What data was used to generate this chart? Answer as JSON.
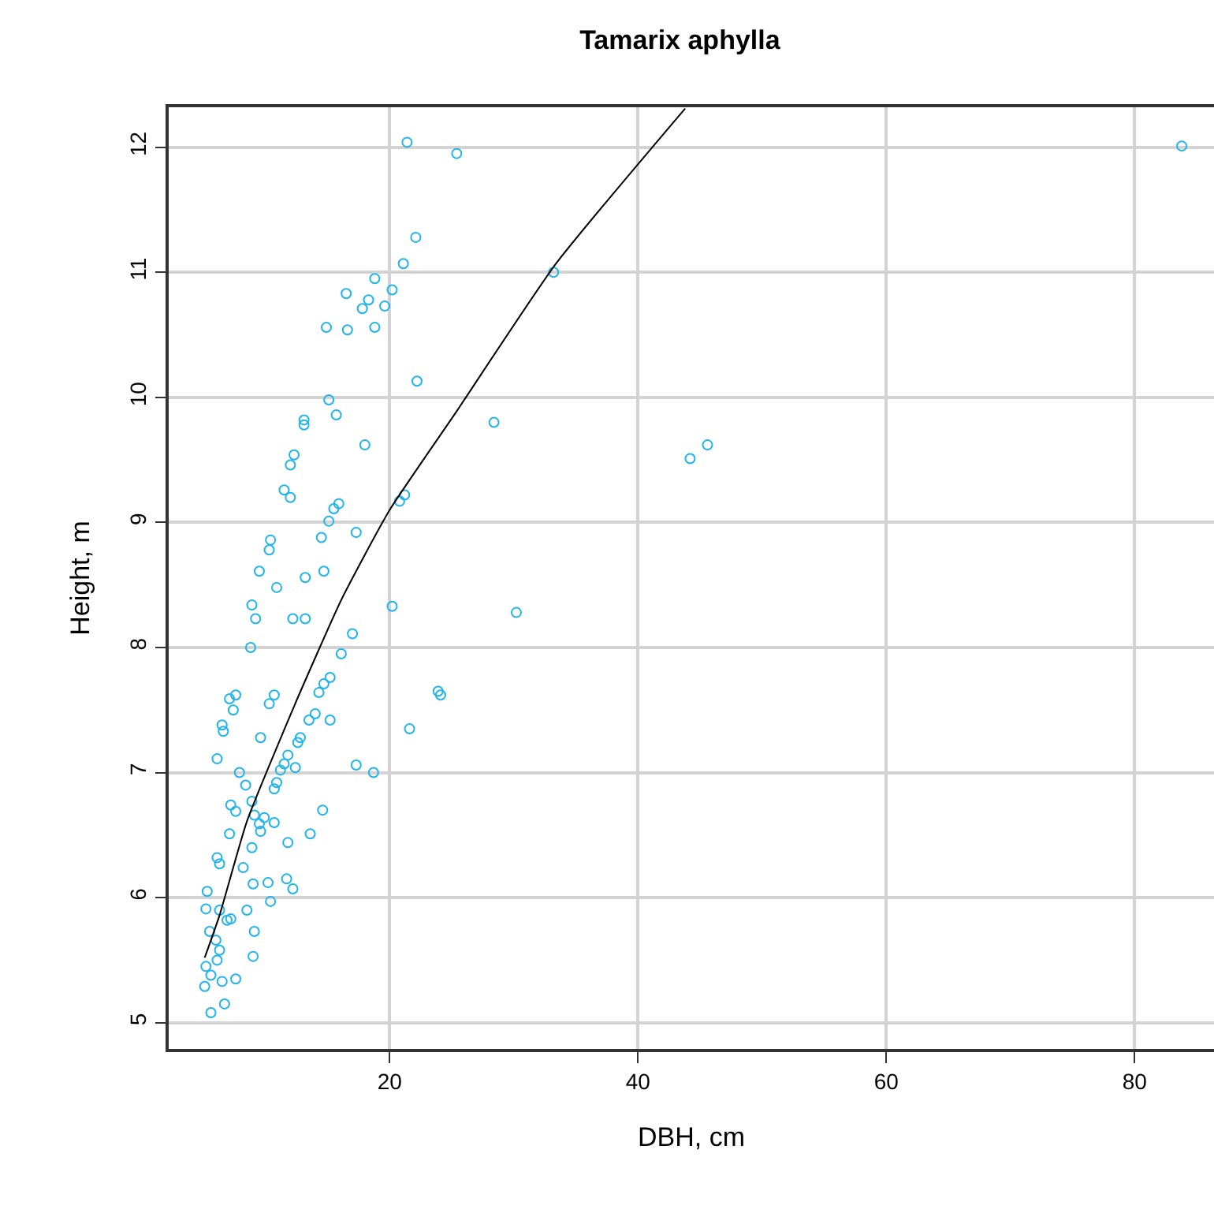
{
  "chart_data": {
    "type": "scatter",
    "title": "Tamarix aphylla",
    "xlabel": "DBH, cm",
    "ylabel": "Height, m",
    "xlim": [
      2.2,
      86.4
    ],
    "ylim": [
      4.79,
      12.32
    ],
    "xticks": [
      20,
      40,
      60,
      80
    ],
    "yticks": [
      5,
      6,
      7,
      8,
      9,
      10,
      11,
      12
    ],
    "grid": true,
    "marker": "circle",
    "legend": false,
    "series": [
      {
        "color": "#1eb4ec",
        "x": [
          21.4,
          25.4,
          83.8,
          22.1,
          33.2,
          21.1,
          18.8,
          20.2,
          16.5,
          18.3,
          17.8,
          19.6,
          14.9,
          16.6,
          18.8,
          22.2,
          15.1,
          15.7,
          13.1,
          13.1,
          28.4,
          18.0,
          44.2,
          45.6,
          12.3,
          12.0,
          11.5,
          12.0,
          21.2,
          20.8,
          15.5,
          15.9,
          15.1,
          14.5,
          10.4,
          10.3,
          17.3,
          14.7,
          9.5,
          13.2,
          10.9,
          20.2,
          8.9,
          9.2,
          30.2,
          12.2,
          13.2,
          17.0,
          8.8,
          16.1,
          14.7,
          14.3,
          15.2,
          10.7,
          7.6,
          7.1,
          10.3,
          7.4,
          23.9,
          24.1,
          6.5,
          6.6,
          14.0,
          13.5,
          15.2,
          12.8,
          21.6,
          9.6,
          6.1,
          12.6,
          11.8,
          11.5,
          17.3,
          18.7,
          7.9,
          11.2,
          12.4,
          10.9,
          10.7,
          8.4,
          7.2,
          7.6,
          8.9,
          14.6,
          9.1,
          9.9,
          10.7,
          9.5,
          9.6,
          7.1,
          13.6,
          8.9,
          11.8,
          6.1,
          6.3,
          8.2,
          10.2,
          11.7,
          12.2,
          9.0,
          10.4,
          5.3,
          5.2,
          6.3,
          8.5,
          6.9,
          9.1,
          7.2,
          5.5,
          6.0,
          6.3,
          6.1,
          9.0,
          5.2,
          5.6,
          5.1,
          6.5,
          7.6,
          6.7,
          5.6
        ],
        "values": [
          12.04,
          11.95,
          12.01,
          11.28,
          11.0,
          11.07,
          10.95,
          10.86,
          10.83,
          10.78,
          10.71,
          10.73,
          10.56,
          10.54,
          10.56,
          10.13,
          9.98,
          9.86,
          9.82,
          9.78,
          9.8,
          9.62,
          9.51,
          9.62,
          9.54,
          9.46,
          9.26,
          9.2,
          9.22,
          9.17,
          9.11,
          9.15,
          9.01,
          8.88,
          8.86,
          8.78,
          8.92,
          8.61,
          8.61,
          8.56,
          8.48,
          8.33,
          8.34,
          8.23,
          8.28,
          8.23,
          8.23,
          8.11,
          8.0,
          7.95,
          7.71,
          7.64,
          7.76,
          7.62,
          7.62,
          7.59,
          7.55,
          7.5,
          7.65,
          7.62,
          7.38,
          7.33,
          7.47,
          7.42,
          7.42,
          7.28,
          7.35,
          7.28,
          7.11,
          7.24,
          7.14,
          7.07,
          7.06,
          7.0,
          7.0,
          7.02,
          7.04,
          6.92,
          6.87,
          6.9,
          6.74,
          6.69,
          6.77,
          6.7,
          6.66,
          6.64,
          6.6,
          6.59,
          6.53,
          6.51,
          6.51,
          6.4,
          6.44,
          6.32,
          6.27,
          6.24,
          6.12,
          6.15,
          6.07,
          6.11,
          5.97,
          6.05,
          5.91,
          5.9,
          5.9,
          5.82,
          5.73,
          5.83,
          5.73,
          5.66,
          5.58,
          5.5,
          5.53,
          5.45,
          5.38,
          5.29,
          5.33,
          5.35,
          5.15,
          5.08
        ]
      },
      {
        "type": "line",
        "color": "#000000",
        "marker": "none",
        "x": [
          5.1,
          6.3,
          8.5,
          12.3,
          16.1,
          20.0,
          25.4,
          33.4,
          43.8
        ],
        "values": [
          5.52,
          5.86,
          6.61,
          7.53,
          8.38,
          9.1,
          9.89,
          11.07,
          12.31
        ]
      }
    ]
  }
}
